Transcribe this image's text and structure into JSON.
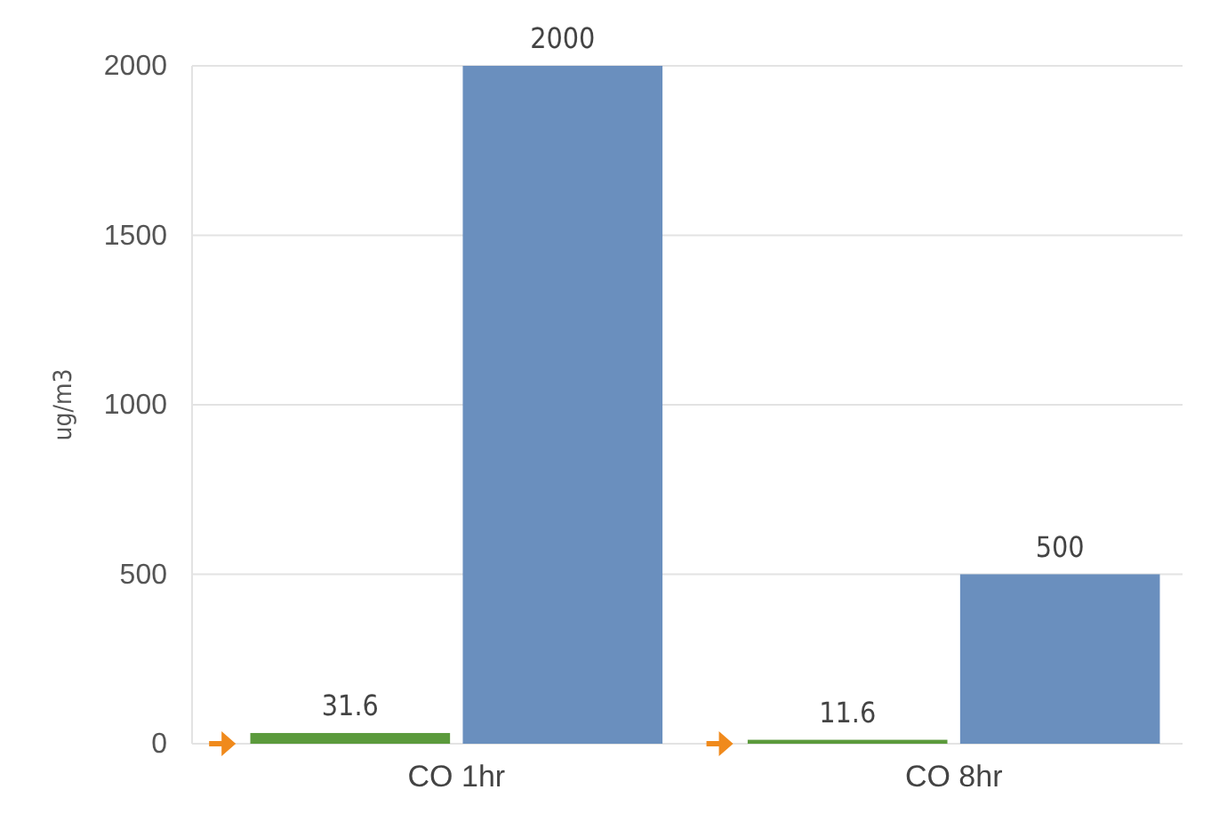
{
  "chart_data": {
    "type": "bar",
    "ylabel": "ug/m3",
    "categories": [
      "CO 1hr",
      "CO 8hr"
    ],
    "series": [
      {
        "color": "#5b9a3c",
        "values": [
          31.6,
          11.6
        ]
      },
      {
        "color": "#6a8fbe",
        "values": [
          2000,
          500
        ]
      }
    ],
    "ylim": [
      0,
      2000
    ],
    "yticks": [
      0,
      500,
      1000,
      1500,
      2000
    ],
    "grid": "y",
    "data_labels": true
  }
}
